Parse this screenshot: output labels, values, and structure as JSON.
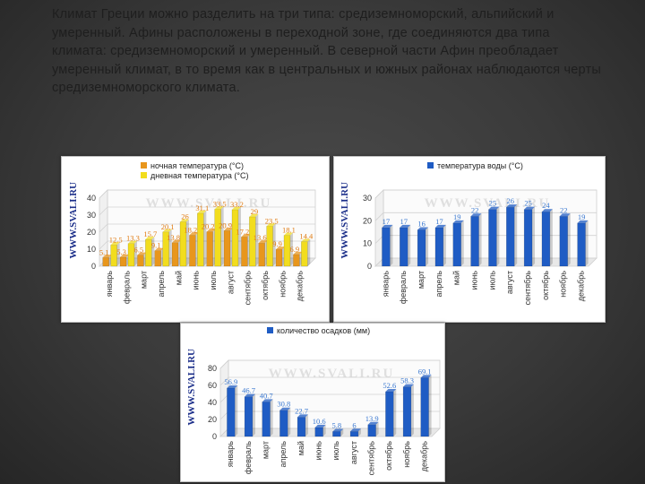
{
  "slide": {
    "paragraph": "Климат Греции можно разделить на три типа: средиземноморский, альпийский и умеренный. Афины расположены в переходной зоне, где соединяются два типа климата: средиземноморский и умеренный. В северной части Афин преобладает умеренный климат, в то время как в центральных и южных районах наблюдаются черты средиземноморского климата."
  },
  "watermark": "WWW.SVALI.RU",
  "colors": {
    "night": "#e8961c",
    "day": "#f2dd1e",
    "water": "#1f5cc4",
    "precip": "#1f5cc4",
    "label_orange": "#e07a10",
    "label_blue": "#3a78d0",
    "frame": "#cfcfcf",
    "axis_text": "#333333"
  },
  "chart_data": [
    {
      "type": "bar",
      "categories": [
        "январь",
        "февраль",
        "март",
        "апрель",
        "май",
        "июнь",
        "июль",
        "август",
        "сентябрь",
        "октябрь",
        "ноябрь",
        "декабрь"
      ],
      "series": [
        {
          "name": "ночная температура (°С)",
          "values": [
            5.1,
            5.3,
            6.5,
            9.1,
            13.8,
            18.2,
            20.2,
            20.9,
            17.2,
            13.6,
            9.9,
            6.9
          ]
        },
        {
          "name": "дневная температура (°С)",
          "values": [
            12.5,
            13.3,
            15.7,
            20.1,
            26.0,
            31.1,
            33.5,
            33.2,
            29.0,
            23.5,
            18.1,
            14.4
          ]
        }
      ],
      "ylim": [
        0,
        40
      ],
      "yticks": [
        0,
        10,
        20,
        30,
        40
      ],
      "legend": "top"
    },
    {
      "type": "bar",
      "categories": [
        "январь",
        "февраль",
        "март",
        "апрель",
        "май",
        "июнь",
        "июль",
        "август",
        "сентябрь",
        "октябрь",
        "ноябрь",
        "декабрь"
      ],
      "series": [
        {
          "name": "температура воды (°С)",
          "values": [
            17,
            17,
            16,
            17,
            19,
            22,
            25,
            26,
            25,
            24,
            22,
            19
          ]
        }
      ],
      "ylim": [
        0,
        30
      ],
      "yticks": [
        0,
        10,
        20,
        30
      ],
      "legend": "top"
    },
    {
      "type": "bar",
      "categories": [
        "январь",
        "февраль",
        "март",
        "апрель",
        "май",
        "июнь",
        "июль",
        "август",
        "сентябрь",
        "октябрь",
        "ноябрь",
        "декабрь"
      ],
      "series": [
        {
          "name": "количество осадков (мм)",
          "values": [
            56.9,
            46.7,
            40.7,
            30.8,
            22.7,
            10.6,
            5.8,
            6,
            13.9,
            52.6,
            58.3,
            69.1
          ]
        }
      ],
      "ylim": [
        0,
        80
      ],
      "yticks": [
        0,
        20,
        40,
        60,
        80
      ],
      "legend": "top"
    }
  ]
}
